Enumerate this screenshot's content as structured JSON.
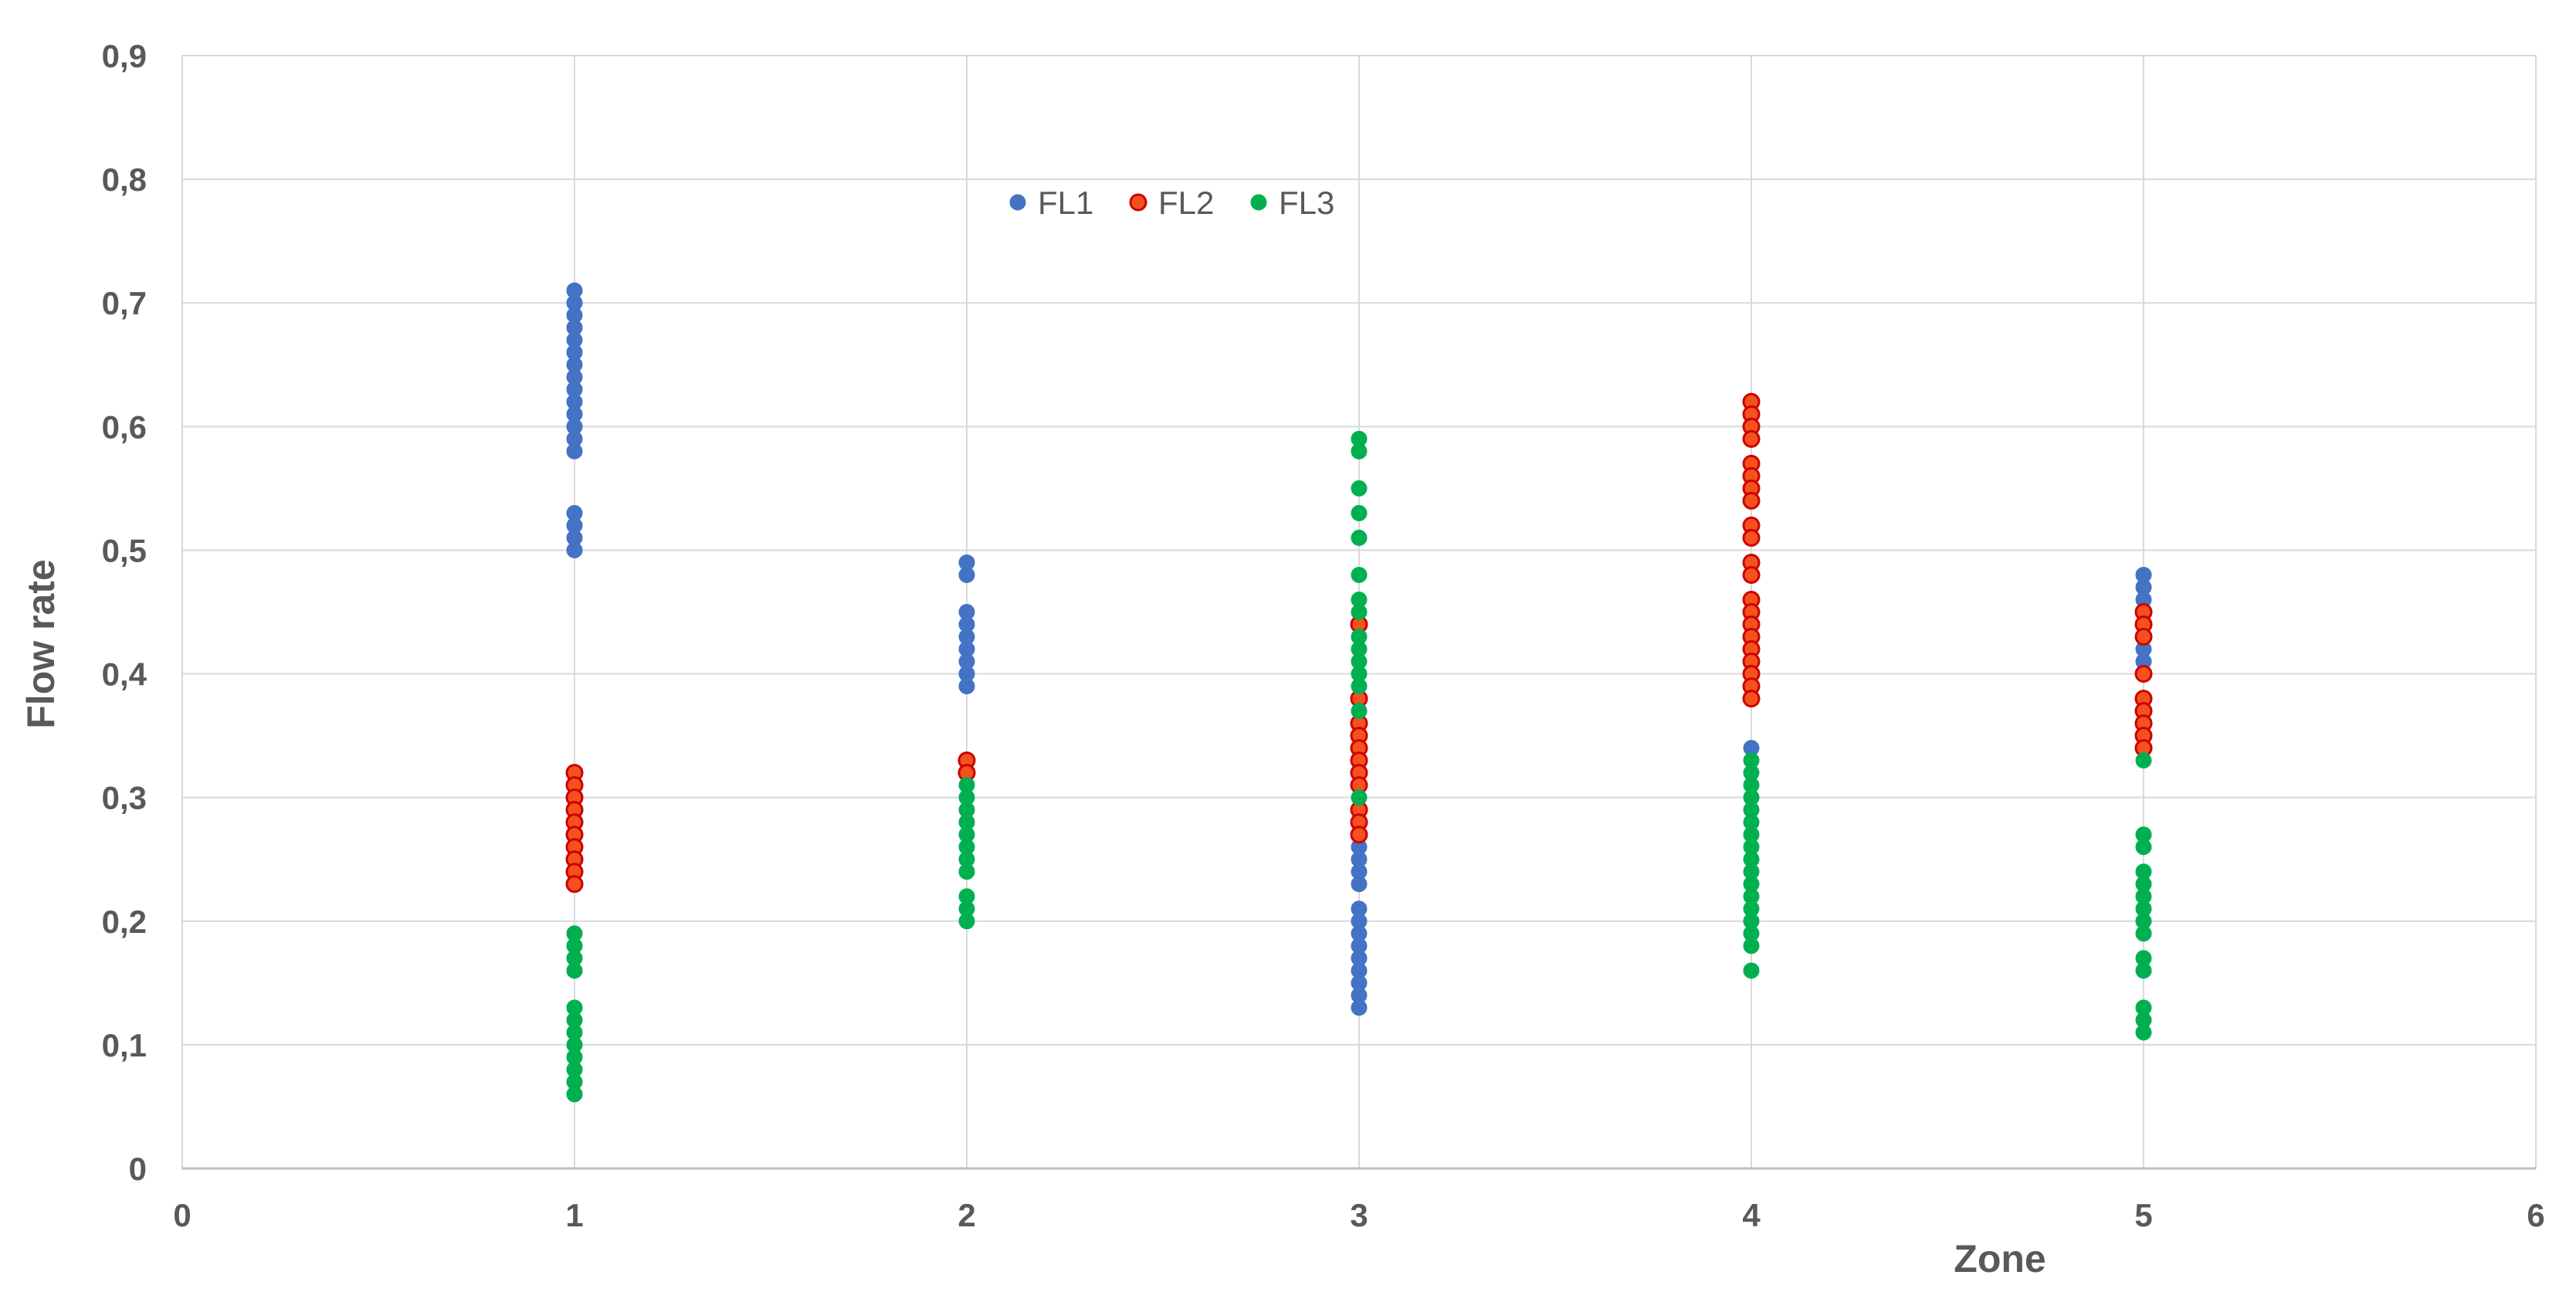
{
  "chart_data": {
    "type": "scatter",
    "xlabel": "Zone",
    "ylabel": "Flow rate",
    "xlim": [
      0,
      6
    ],
    "ylim": [
      0,
      0.9
    ],
    "x_ticks": [
      "0",
      "1",
      "2",
      "3",
      "4",
      "5",
      "6"
    ],
    "y_ticks": [
      "0",
      "0,1",
      "0,2",
      "0,3",
      "0,4",
      "0,5",
      "0,6",
      "0,7",
      "0,8",
      "0,9"
    ],
    "grid": true,
    "legend_position": "top-center",
    "series": [
      {
        "name": "FL1",
        "color": "#4472c4",
        "points": [
          [
            1,
            0.71
          ],
          [
            1,
            0.7
          ],
          [
            1,
            0.69
          ],
          [
            1,
            0.68
          ],
          [
            1,
            0.67
          ],
          [
            1,
            0.66
          ],
          [
            1,
            0.65
          ],
          [
            1,
            0.64
          ],
          [
            1,
            0.63
          ],
          [
            1,
            0.62
          ],
          [
            1,
            0.61
          ],
          [
            1,
            0.6
          ],
          [
            1,
            0.59
          ],
          [
            1,
            0.58
          ],
          [
            1,
            0.53
          ],
          [
            1,
            0.52
          ],
          [
            1,
            0.51
          ],
          [
            1,
            0.5
          ],
          [
            2,
            0.49
          ],
          [
            2,
            0.48
          ],
          [
            2,
            0.45
          ],
          [
            2,
            0.44
          ],
          [
            2,
            0.43
          ],
          [
            2,
            0.42
          ],
          [
            2,
            0.41
          ],
          [
            2,
            0.4
          ],
          [
            2,
            0.39
          ],
          [
            3,
            0.26
          ],
          [
            3,
            0.25
          ],
          [
            3,
            0.24
          ],
          [
            3,
            0.23
          ],
          [
            3,
            0.21
          ],
          [
            3,
            0.2
          ],
          [
            3,
            0.19
          ],
          [
            3,
            0.18
          ],
          [
            3,
            0.17
          ],
          [
            3,
            0.16
          ],
          [
            3,
            0.15
          ],
          [
            3,
            0.14
          ],
          [
            3,
            0.13
          ],
          [
            4,
            0.34
          ],
          [
            5,
            0.48
          ],
          [
            5,
            0.47
          ],
          [
            5,
            0.46
          ],
          [
            5,
            0.42
          ],
          [
            5,
            0.41
          ]
        ]
      },
      {
        "name": "FL2",
        "color": "#f4511e",
        "edge_color": "#cc0000",
        "points": [
          [
            1,
            0.32
          ],
          [
            1,
            0.31
          ],
          [
            1,
            0.3
          ],
          [
            1,
            0.29
          ],
          [
            1,
            0.28
          ],
          [
            1,
            0.27
          ],
          [
            1,
            0.26
          ],
          [
            1,
            0.25
          ],
          [
            1,
            0.24
          ],
          [
            1,
            0.23
          ],
          [
            2,
            0.33
          ],
          [
            2,
            0.32
          ],
          [
            3,
            0.44
          ],
          [
            3,
            0.38
          ],
          [
            3,
            0.36
          ],
          [
            3,
            0.35
          ],
          [
            3,
            0.34
          ],
          [
            3,
            0.33
          ],
          [
            3,
            0.32
          ],
          [
            3,
            0.31
          ],
          [
            3,
            0.29
          ],
          [
            3,
            0.28
          ],
          [
            3,
            0.27
          ],
          [
            4,
            0.62
          ],
          [
            4,
            0.61
          ],
          [
            4,
            0.6
          ],
          [
            4,
            0.59
          ],
          [
            4,
            0.57
          ],
          [
            4,
            0.56
          ],
          [
            4,
            0.55
          ],
          [
            4,
            0.54
          ],
          [
            4,
            0.52
          ],
          [
            4,
            0.51
          ],
          [
            4,
            0.49
          ],
          [
            4,
            0.48
          ],
          [
            4,
            0.46
          ],
          [
            4,
            0.45
          ],
          [
            4,
            0.44
          ],
          [
            4,
            0.43
          ],
          [
            4,
            0.42
          ],
          [
            4,
            0.41
          ],
          [
            4,
            0.4
          ],
          [
            4,
            0.39
          ],
          [
            4,
            0.38
          ],
          [
            5,
            0.45
          ],
          [
            5,
            0.44
          ],
          [
            5,
            0.43
          ],
          [
            5,
            0.4
          ],
          [
            5,
            0.38
          ],
          [
            5,
            0.37
          ],
          [
            5,
            0.36
          ],
          [
            5,
            0.35
          ],
          [
            5,
            0.34
          ]
        ]
      },
      {
        "name": "FL3",
        "color": "#00b050",
        "points": [
          [
            1,
            0.19
          ],
          [
            1,
            0.18
          ],
          [
            1,
            0.17
          ],
          [
            1,
            0.16
          ],
          [
            1,
            0.13
          ],
          [
            1,
            0.12
          ],
          [
            1,
            0.11
          ],
          [
            1,
            0.1
          ],
          [
            1,
            0.09
          ],
          [
            1,
            0.08
          ],
          [
            1,
            0.07
          ],
          [
            1,
            0.06
          ],
          [
            2,
            0.31
          ],
          [
            2,
            0.3
          ],
          [
            2,
            0.29
          ],
          [
            2,
            0.28
          ],
          [
            2,
            0.27
          ],
          [
            2,
            0.26
          ],
          [
            2,
            0.25
          ],
          [
            2,
            0.24
          ],
          [
            2,
            0.22
          ],
          [
            2,
            0.21
          ],
          [
            2,
            0.2
          ],
          [
            3,
            0.59
          ],
          [
            3,
            0.58
          ],
          [
            3,
            0.55
          ],
          [
            3,
            0.53
          ],
          [
            3,
            0.51
          ],
          [
            3,
            0.48
          ],
          [
            3,
            0.46
          ],
          [
            3,
            0.45
          ],
          [
            3,
            0.43
          ],
          [
            3,
            0.42
          ],
          [
            3,
            0.41
          ],
          [
            3,
            0.4
          ],
          [
            3,
            0.39
          ],
          [
            3,
            0.37
          ],
          [
            3,
            0.3
          ],
          [
            4,
            0.33
          ],
          [
            4,
            0.32
          ],
          [
            4,
            0.31
          ],
          [
            4,
            0.3
          ],
          [
            4,
            0.29
          ],
          [
            4,
            0.28
          ],
          [
            4,
            0.27
          ],
          [
            4,
            0.26
          ],
          [
            4,
            0.25
          ],
          [
            4,
            0.24
          ],
          [
            4,
            0.23
          ],
          [
            4,
            0.22
          ],
          [
            4,
            0.21
          ],
          [
            4,
            0.2
          ],
          [
            4,
            0.19
          ],
          [
            4,
            0.18
          ],
          [
            4,
            0.16
          ],
          [
            5,
            0.33
          ],
          [
            5,
            0.27
          ],
          [
            5,
            0.26
          ],
          [
            5,
            0.24
          ],
          [
            5,
            0.23
          ],
          [
            5,
            0.22
          ],
          [
            5,
            0.21
          ],
          [
            5,
            0.2
          ],
          [
            5,
            0.19
          ],
          [
            5,
            0.17
          ],
          [
            5,
            0.16
          ],
          [
            5,
            0.13
          ],
          [
            5,
            0.12
          ],
          [
            5,
            0.11
          ]
        ]
      }
    ]
  }
}
